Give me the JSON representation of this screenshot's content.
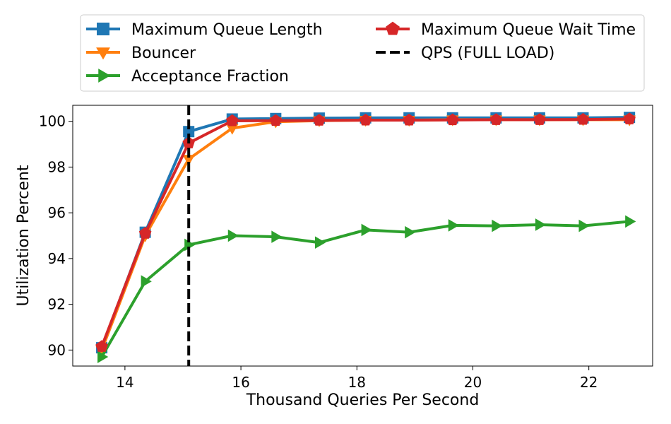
{
  "chart_data": {
    "type": "line",
    "title": "",
    "xlabel": "Thousand Queries Per Second",
    "ylabel": "Utilization Percent",
    "xlim": [
      13.1,
      23.1
    ],
    "ylim": [
      89.3,
      100.7
    ],
    "xticks": [
      14,
      16,
      18,
      20,
      22
    ],
    "yticks": [
      90,
      92,
      94,
      96,
      98,
      100
    ],
    "x": [
      13.6,
      14.35,
      15.1,
      15.85,
      16.6,
      17.35,
      18.15,
      18.9,
      19.65,
      20.4,
      21.15,
      21.9,
      22.7
    ],
    "series": [
      {
        "name": "Maximum Queue Length",
        "color": "#1f77b4",
        "marker": "square",
        "values": [
          90.1,
          95.15,
          99.55,
          100.1,
          100.12,
          100.14,
          100.15,
          100.15,
          100.15,
          100.15,
          100.15,
          100.15,
          100.17
        ]
      },
      {
        "name": "Bouncer",
        "color": "#ff7f0e",
        "marker": "triangle-down",
        "values": [
          90.0,
          95.0,
          98.35,
          99.7,
          99.98,
          100.03,
          100.05,
          100.05,
          100.07,
          100.07,
          100.07,
          100.07,
          100.07
        ]
      },
      {
        "name": "Acceptance Fraction",
        "color": "#2ca02c",
        "marker": "triangle-right",
        "values": [
          89.7,
          93.0,
          94.6,
          95.0,
          94.95,
          94.7,
          95.25,
          95.15,
          95.45,
          95.43,
          95.48,
          95.43,
          95.62
        ]
      },
      {
        "name": "Maximum Queue Wait Time",
        "color": "#d62728",
        "marker": "pentagon",
        "values": [
          90.15,
          95.1,
          99.05,
          100.02,
          100.03,
          100.04,
          100.05,
          100.05,
          100.06,
          100.07,
          100.07,
          100.08,
          100.1
        ]
      }
    ],
    "vline": {
      "name": "QPS (FULL LOAD)",
      "x": 15.1,
      "color": "#000000",
      "style": "dashed"
    },
    "legend": {
      "placement": "top",
      "columns": 2,
      "entries": [
        "Maximum Queue Length",
        "Bouncer",
        "Acceptance Fraction",
        "Maximum Queue Wait Time",
        "QPS (FULL LOAD)"
      ]
    },
    "grid": false
  }
}
